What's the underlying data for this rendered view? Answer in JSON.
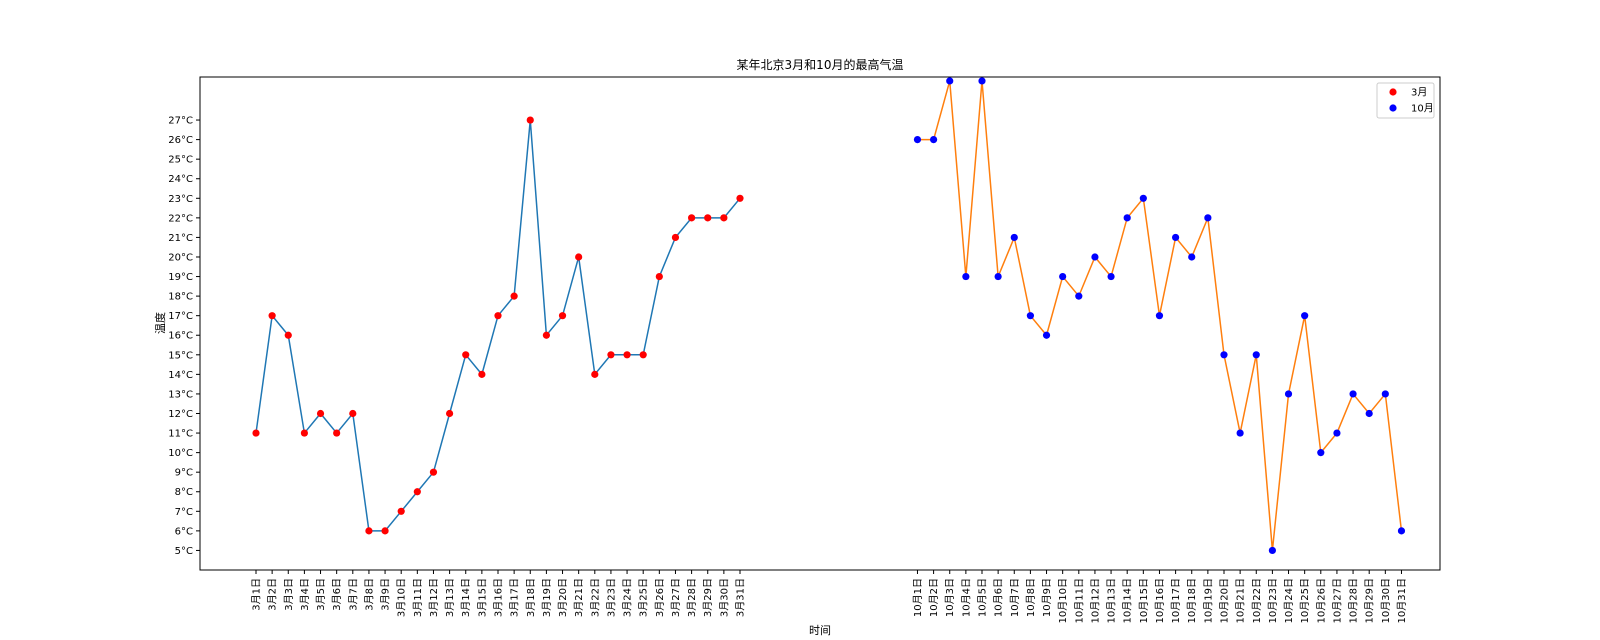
{
  "chart_data": {
    "type": "line",
    "title": "某年北京3月和10月的最高气温",
    "xlabel": "时间",
    "ylabel": "温度",
    "ylim": [
      4,
      29.2
    ],
    "y_ticks": [
      5,
      6,
      7,
      8,
      9,
      10,
      11,
      12,
      13,
      14,
      15,
      16,
      17,
      18,
      19,
      20,
      21,
      22,
      23,
      24,
      25,
      26,
      27
    ],
    "y_tick_suffix": "°C",
    "grid": false,
    "legend_position": "top-right",
    "series": [
      {
        "name": "3月",
        "line_color": "#1f77b4",
        "marker_color": "#ff0000",
        "x_index": [
          0,
          1,
          2,
          3,
          4,
          5,
          6,
          7,
          8,
          9,
          10,
          11,
          12,
          13,
          14,
          15,
          16,
          17,
          18,
          19,
          20,
          21,
          22,
          23,
          24,
          25,
          26,
          27,
          28,
          29,
          30
        ],
        "labels": [
          "3月1日",
          "3月2日",
          "3月3日",
          "3月4日",
          "3月5日",
          "3月6日",
          "3月7日",
          "3月8日",
          "3月9日",
          "3月10日",
          "3月11日",
          "3月12日",
          "3月13日",
          "3月14日",
          "3月15日",
          "3月16日",
          "3月17日",
          "3月18日",
          "3月19日",
          "3月20日",
          "3月21日",
          "3月22日",
          "3月23日",
          "3月24日",
          "3月25日",
          "3月26日",
          "3月27日",
          "3月28日",
          "3月29日",
          "3月30日",
          "3月31日"
        ],
        "values": [
          11,
          17,
          16,
          11,
          12,
          11,
          12,
          6,
          6,
          7,
          8,
          9,
          12,
          15,
          14,
          17,
          18,
          27,
          16,
          17,
          20,
          14,
          15,
          15,
          15,
          19,
          21,
          22,
          22,
          22,
          23
        ]
      },
      {
        "name": "10月",
        "line_color": "#ff7f0e",
        "marker_color": "#0000ff",
        "x_index": [
          41,
          42,
          43,
          44,
          45,
          46,
          47,
          48,
          49,
          50,
          51,
          52,
          53,
          54,
          55,
          56,
          57,
          58,
          59,
          60,
          61,
          62,
          63,
          64,
          65,
          66,
          67,
          68,
          69,
          70,
          71
        ],
        "labels": [
          "10月1日",
          "10月2日",
          "10月3日",
          "10月4日",
          "10月5日",
          "10月6日",
          "10月7日",
          "10月8日",
          "10月9日",
          "10月10日",
          "10月11日",
          "10月12日",
          "10月13日",
          "10月14日",
          "10月15日",
          "10月16日",
          "10月17日",
          "10月18日",
          "10月19日",
          "10月20日",
          "10月21日",
          "10月22日",
          "10月23日",
          "10月24日",
          "10月25日",
          "10月26日",
          "10月27日",
          "10月28日",
          "10月29日",
          "10月30日",
          "10月31日"
        ],
        "values": [
          26,
          26,
          29,
          19,
          29,
          19,
          21,
          17,
          16,
          19,
          18,
          20,
          19,
          22,
          23,
          17,
          21,
          20,
          22,
          15,
          11,
          15,
          5,
          13,
          17,
          10,
          11,
          13,
          12,
          13,
          6
        ]
      }
    ]
  }
}
